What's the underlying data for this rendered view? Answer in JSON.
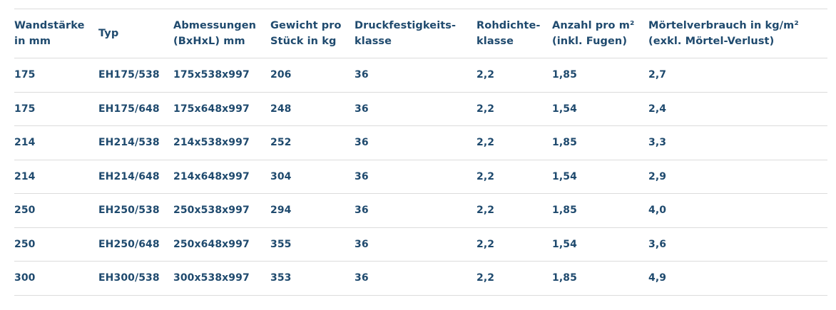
{
  "table": {
    "headers": [
      "Wandstärke\nin mm",
      "Typ",
      "Abmessungen\n(BxHxL) mm",
      "Gewicht pro\nStück in kg",
      "Druckfestigkeits-\nklasse",
      "Rohdichte-\nklasse",
      "Anzahl pro m²\n(inkl. Fugen)",
      "Mörtelverbrauch in kg/m²\n(exkl. Mörtel-Verlust)"
    ],
    "rows": [
      [
        "175",
        "EH175/538",
        "175x538x997",
        "206",
        "36",
        "2,2",
        "1,85",
        "2,7"
      ],
      [
        "175",
        "EH175/648",
        "175x648x997",
        "248",
        "36",
        "2,2",
        "1,54",
        "2,4"
      ],
      [
        "214",
        "EH214/538",
        "214x538x997",
        "252",
        "36",
        "2,2",
        "1,85",
        "3,3"
      ],
      [
        "214",
        "EH214/648",
        "214x648x997",
        "304",
        "36",
        "2,2",
        "1,54",
        "2,9"
      ],
      [
        "250",
        "EH250/538",
        "250x538x997",
        "294",
        "36",
        "2,2",
        "1,85",
        "4,0"
      ],
      [
        "250",
        "EH250/648",
        "250x648x997",
        "355",
        "36",
        "2,2",
        "1,54",
        "3,6"
      ],
      [
        "300",
        "EH300/538",
        "300x538x997",
        "353",
        "36",
        "2,2",
        "1,85",
        "4,9"
      ]
    ]
  },
  "colors": {
    "text": "#1f4a6e",
    "border": "#dcdcdc",
    "background": "#ffffff"
  }
}
